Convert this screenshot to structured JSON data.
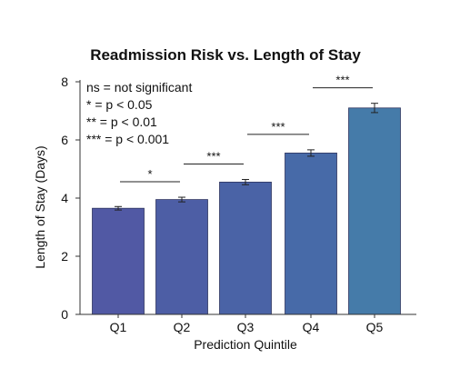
{
  "chart_data": {
    "type": "bar",
    "title": "Readmission Risk vs. Length of Stay",
    "xlabel": "Prediction Quintile",
    "ylabel": "Length of Stay (Days)",
    "categories": [
      "Q1",
      "Q2",
      "Q3",
      "Q4",
      "Q5"
    ],
    "values": [
      3.65,
      3.95,
      4.55,
      5.55,
      7.1
    ],
    "errors": [
      0.06,
      0.08,
      0.09,
      0.11,
      0.16
    ],
    "ylim": [
      0,
      8
    ],
    "yticks": [
      "0",
      "2",
      "4",
      "6",
      "8"
    ],
    "grid": false,
    "legend_lines": [
      "ns = not significant",
      "* = p < 0.05",
      "** = p < 0.01",
      "*** = p < 0.001"
    ],
    "significance": [
      {
        "from": 0,
        "to": 1,
        "label": "*"
      },
      {
        "from": 1,
        "to": 2,
        "label": "***"
      },
      {
        "from": 2,
        "to": 3,
        "label": "***"
      },
      {
        "from": 3,
        "to": 4,
        "label": "***"
      }
    ],
    "bar_colors": [
      "#5159a4",
      "#4d5ea5",
      "#4a63a6",
      "#476aa8",
      "#457ba9"
    ]
  }
}
